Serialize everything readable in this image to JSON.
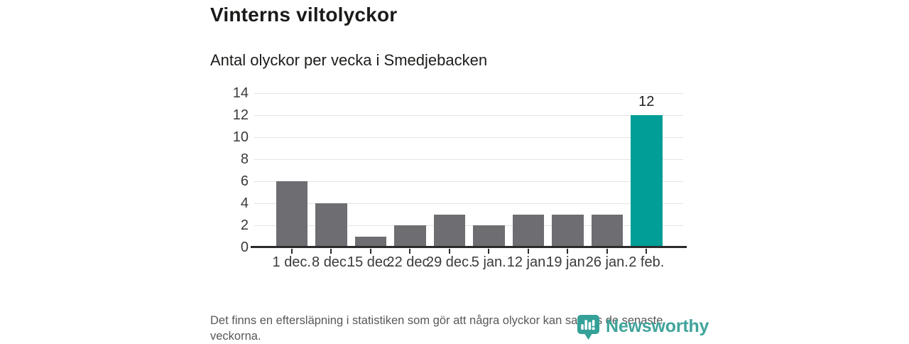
{
  "header": {
    "title": "Vinterns viltolyckor",
    "subtitle": "Antal olyckor per vecka i Smedjebacken"
  },
  "chart_data": {
    "type": "bar",
    "categories": [
      "1 dec.",
      "8 dec.",
      "15 dec.",
      "22 dec.",
      "29 dec.",
      "5 jan.",
      "12 jan.",
      "19 jan.",
      "26 jan.",
      "2 feb."
    ],
    "values": [
      6,
      4,
      1,
      2,
      3,
      2,
      3,
      3,
      3,
      12
    ],
    "title": "Vinterns viltolyckor",
    "subtitle": "Antal olyckor per vecka i Smedjebacken",
    "xlabel": "",
    "ylabel": "",
    "ylim": [
      0,
      14
    ],
    "yticks": [
      0,
      2,
      4,
      6,
      8,
      10,
      12,
      14
    ],
    "grid": true,
    "legend": "none",
    "highlight_index": 9,
    "value_labels": [
      {
        "index": 9,
        "text": "12"
      }
    ],
    "colors": {
      "bar": "#6d6d72",
      "highlight": "#009e96",
      "grid": "#e4e4e4",
      "axis": "#2b2b2b",
      "tick_text": "#3a3a38"
    }
  },
  "footer": {
    "note": "Det finns en eftersläpning i statistiken som gör att några olyckor kan saknas de senaste veckorna."
  },
  "logo": {
    "text": "Newsworthy",
    "icon": "newsworthy-pin-chart-icon",
    "color": "#40a49c"
  }
}
